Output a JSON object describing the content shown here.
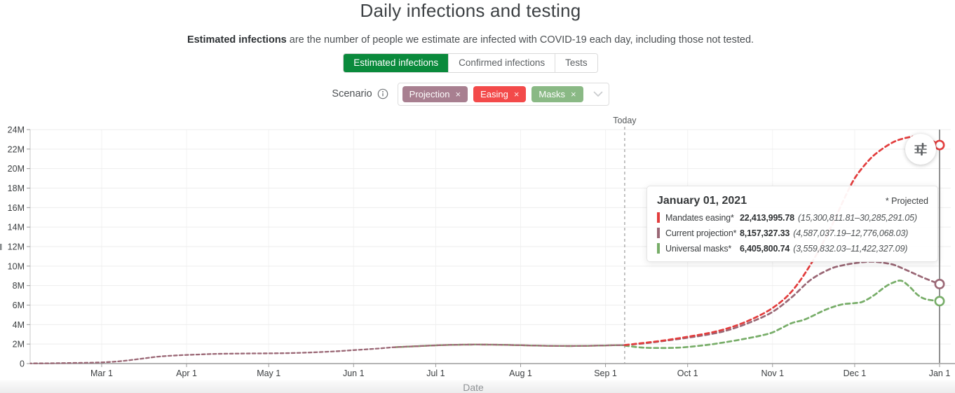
{
  "page": {
    "title": "Daily infections and testing",
    "subtitle_bold": "Estimated infections",
    "subtitle_rest": " are the number of people we estimate are infected with COVID-19 each day, including those not tested."
  },
  "tabs": [
    {
      "label": "Estimated infections",
      "active": true
    },
    {
      "label": "Confirmed infections",
      "active": false
    },
    {
      "label": "Tests",
      "active": false
    }
  ],
  "scenario": {
    "label": "Scenario",
    "tags": [
      {
        "label": "Projection",
        "close": "×",
        "color": "#a87f90"
      },
      {
        "label": "Easing",
        "close": "×",
        "color": "#f34a4a"
      },
      {
        "label": "Masks",
        "close": "×",
        "color": "#8ab985"
      }
    ]
  },
  "tooltip": {
    "title": "January 01, 2021",
    "note": "* Projected",
    "rows": [
      {
        "label": "Mandates easing*",
        "value": "22,413,995.78",
        "range": "(15,300,811.81–30,285,291.05)",
        "color": "#e23d3d"
      },
      {
        "label": "Current projection*",
        "value": "8,157,327.33",
        "range": "(4,587,037.19–12,776,068.03)",
        "color": "#9a6775"
      },
      {
        "label": "Universal masks*",
        "value": "6,405,800.74",
        "range": "(3,559,832.03–11,422,327.09)",
        "color": "#77ad68"
      }
    ]
  },
  "chart_data": {
    "type": "line",
    "title": "Daily infections and testing",
    "xlabel": "Date",
    "ylabel": "",
    "ylim": [
      0,
      24000000
    ],
    "grid": true,
    "today_label": "Today",
    "today_day": 220,
    "hover_day": 335,
    "x_ticks": [
      {
        "label": "Mar 1",
        "day": 29
      },
      {
        "label": "Apr 1",
        "day": 60
      },
      {
        "label": "May 1",
        "day": 90
      },
      {
        "label": "Jun 1",
        "day": 121
      },
      {
        "label": "Jul 1",
        "day": 151
      },
      {
        "label": "Aug 1",
        "day": 182
      },
      {
        "label": "Sep 1",
        "day": 213
      },
      {
        "label": "Oct 1",
        "day": 243
      },
      {
        "label": "Nov 1",
        "day": 274
      },
      {
        "label": "Dec 1",
        "day": 304
      },
      {
        "label": "Jan 1",
        "day": 335
      }
    ],
    "y_ticks": [
      {
        "label": "0",
        "value": 0
      },
      {
        "label": "2M",
        "value": 2
      },
      {
        "label": "4M",
        "value": 4
      },
      {
        "label": "6M",
        "value": 6
      },
      {
        "label": "8M",
        "value": 8
      },
      {
        "label": "10M",
        "value": 10
      },
      {
        "label": "12M",
        "value": 12
      },
      {
        "label": "14M",
        "value": 14
      },
      {
        "label": "16M",
        "value": 16
      },
      {
        "label": "18M",
        "value": 18
      },
      {
        "label": "20M",
        "value": 20
      },
      {
        "label": "22M",
        "value": 22
      },
      {
        "label": "24M",
        "value": 24
      }
    ],
    "history_millions": [
      [
        3,
        0.02
      ],
      [
        10,
        0.03
      ],
      [
        15,
        0.05
      ],
      [
        22,
        0.08
      ],
      [
        29,
        0.12
      ],
      [
        36,
        0.25
      ],
      [
        43,
        0.48
      ],
      [
        50,
        0.72
      ],
      [
        57,
        0.85
      ],
      [
        64,
        0.93
      ],
      [
        71,
        1.0
      ],
      [
        80,
        1.03
      ],
      [
        90,
        1.05
      ],
      [
        98,
        1.08
      ],
      [
        106,
        1.15
      ],
      [
        114,
        1.25
      ],
      [
        121,
        1.38
      ],
      [
        129,
        1.52
      ],
      [
        136,
        1.68
      ],
      [
        144,
        1.78
      ],
      [
        151,
        1.87
      ],
      [
        159,
        1.93
      ],
      [
        166,
        1.95
      ],
      [
        174,
        1.93
      ],
      [
        182,
        1.88
      ],
      [
        190,
        1.83
      ],
      [
        198,
        1.8
      ],
      [
        206,
        1.82
      ],
      [
        213,
        1.86
      ],
      [
        220,
        1.9
      ]
    ],
    "series": [
      {
        "name": "Mandates easing",
        "color": "#e23d3d",
        "history_from": 136,
        "end_value_millions": 22.414,
        "projection_millions": [
          [
            220,
            1.9
          ],
          [
            228,
            2.15
          ],
          [
            235,
            2.4
          ],
          [
            243,
            2.75
          ],
          [
            251,
            3.15
          ],
          [
            258,
            3.65
          ],
          [
            266,
            4.5
          ],
          [
            274,
            5.7
          ],
          [
            281,
            7.4
          ],
          [
            288,
            10.2
          ],
          [
            295,
            13.8
          ],
          [
            300,
            16.8
          ],
          [
            304,
            19.0
          ],
          [
            309,
            20.8
          ],
          [
            313,
            21.8
          ],
          [
            318,
            22.7
          ],
          [
            322,
            23.1
          ],
          [
            326,
            23.3
          ],
          [
            330,
            23.2
          ],
          [
            335,
            22.414
          ]
        ]
      },
      {
        "name": "Current projection",
        "color": "#9a6775",
        "history_from": 3,
        "end_value_millions": 8.157,
        "projection_millions": [
          [
            220,
            1.9
          ],
          [
            228,
            2.1
          ],
          [
            235,
            2.35
          ],
          [
            243,
            2.65
          ],
          [
            251,
            3.0
          ],
          [
            258,
            3.45
          ],
          [
            266,
            4.25
          ],
          [
            274,
            5.3
          ],
          [
            281,
            6.8
          ],
          [
            288,
            8.6
          ],
          [
            295,
            9.7
          ],
          [
            300,
            10.1
          ],
          [
            304,
            10.3
          ],
          [
            309,
            10.45
          ],
          [
            313,
            10.4
          ],
          [
            318,
            10.15
          ],
          [
            322,
            9.7
          ],
          [
            326,
            9.2
          ],
          [
            330,
            8.7
          ],
          [
            335,
            8.157
          ]
        ]
      },
      {
        "name": "Universal masks",
        "color": "#77ad68",
        "history_from": 136,
        "end_value_millions": 6.406,
        "projection_millions": [
          [
            220,
            1.85
          ],
          [
            226,
            1.65
          ],
          [
            232,
            1.6
          ],
          [
            238,
            1.62
          ],
          [
            243,
            1.7
          ],
          [
            251,
            1.95
          ],
          [
            258,
            2.25
          ],
          [
            266,
            2.65
          ],
          [
            271,
            2.95
          ],
          [
            274,
            3.2
          ],
          [
            277,
            3.6
          ],
          [
            281,
            4.15
          ],
          [
            285,
            4.45
          ],
          [
            288,
            4.8
          ],
          [
            292,
            5.35
          ],
          [
            296,
            5.8
          ],
          [
            300,
            6.1
          ],
          [
            304,
            6.2
          ],
          [
            307,
            6.35
          ],
          [
            311,
            7.0
          ],
          [
            315,
            7.85
          ],
          [
            318,
            8.3
          ],
          [
            321,
            8.5
          ],
          [
            324,
            7.9
          ],
          [
            327,
            7.05
          ],
          [
            330,
            6.6
          ],
          [
            335,
            6.406
          ]
        ]
      }
    ]
  }
}
